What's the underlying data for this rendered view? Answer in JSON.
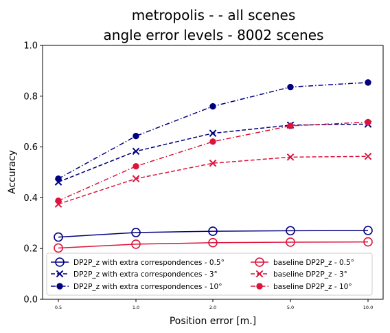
{
  "chart_data": {
    "type": "line",
    "title_line1": "metropolis -  - all scenes",
    "title_line2": "angle error levels - 8002 scenes",
    "xlabel": "Position error [m.]",
    "ylabel": "Accuracy",
    "categories": [
      "0.5",
      "1.0",
      "2.0",
      "5.0",
      "10.0"
    ],
    "ylim": [
      0,
      1
    ],
    "yticks": [
      "0.0",
      "0.2",
      "0.4",
      "0.6",
      "0.8",
      "1.0"
    ],
    "grid": false,
    "legend_placement": "bottom, two columns",
    "series": [
      {
        "name": "DP2P_z with extra correspondences - 0.5°",
        "color": "#000080",
        "marker": "circle-open",
        "linestyle": "solid",
        "values": [
          0.245,
          0.263,
          0.268,
          0.27,
          0.271
        ]
      },
      {
        "name": "DP2P_z with extra correspondences - 3°",
        "color": "#000080",
        "marker": "x",
        "linestyle": "dashed",
        "values": [
          0.462,
          0.583,
          0.654,
          0.686,
          0.69
        ]
      },
      {
        "name": "DP2P_z with extra correspondences - 10°",
        "color": "#000080",
        "marker": "circle-filled",
        "linestyle": "dashdot",
        "values": [
          0.475,
          0.643,
          0.76,
          0.836,
          0.854
        ]
      },
      {
        "name": "baseline DP2P_z - 0.5°",
        "color": "#dc143c",
        "marker": "circle-open",
        "linestyle": "solid",
        "values": [
          0.202,
          0.217,
          0.223,
          0.225,
          0.226
        ]
      },
      {
        "name": "baseline DP2P_z - 3°",
        "color": "#dc143c",
        "marker": "x",
        "linestyle": "dashed",
        "values": [
          0.375,
          0.475,
          0.536,
          0.56,
          0.563
        ]
      },
      {
        "name": "baseline DP2P_z - 10°",
        "color": "#dc143c",
        "marker": "circle-filled",
        "linestyle": "dashdot",
        "values": [
          0.388,
          0.524,
          0.621,
          0.683,
          0.698
        ]
      }
    ]
  }
}
